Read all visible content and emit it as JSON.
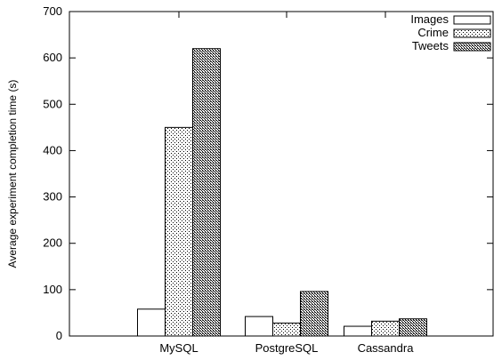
{
  "chart_data": {
    "type": "bar",
    "title": "",
    "xlabel": "",
    "ylabel": "Average experiment completion time (s)",
    "ylim": [
      0,
      700
    ],
    "yticks": [
      0,
      100,
      200,
      300,
      400,
      500,
      600,
      700
    ],
    "categories": [
      "MySQL",
      "PostgreSQL",
      "Cassandra"
    ],
    "series": [
      {
        "name": "Images",
        "values": [
          58,
          42,
          21
        ],
        "pattern": "none"
      },
      {
        "name": "Crime",
        "values": [
          450,
          28,
          32
        ],
        "pattern": "sparse-dots"
      },
      {
        "name": "Tweets",
        "values": [
          620,
          96,
          37
        ],
        "pattern": "dense-crosshatch"
      }
    ],
    "grid": false,
    "legend_position": "top-right"
  }
}
